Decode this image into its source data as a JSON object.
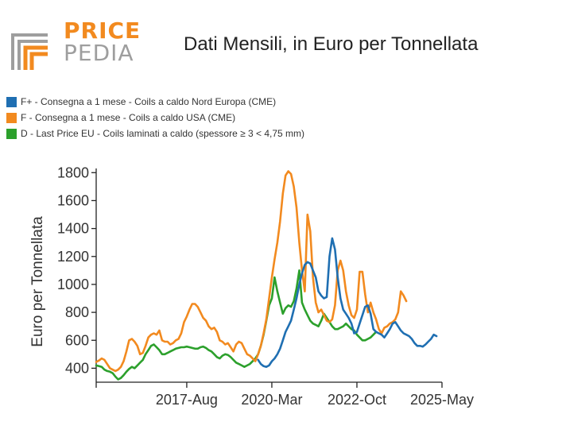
{
  "logo": {
    "line1": "PRICE",
    "line2": "PEDIA"
  },
  "title": "Dati Mensili, in Euro per Tonnellata",
  "colors": {
    "blue": "#1f6fb2",
    "orange": "#f28a1f",
    "green": "#2ca02c",
    "logo_gray": "#9e9e9e",
    "logo_orange": "#f28a1f"
  },
  "chart_data": {
    "type": "line",
    "ylabel": "Euro per Tonnellata",
    "xlabel": "",
    "ylim": [
      300,
      1830
    ],
    "yticks": [
      400,
      600,
      800,
      1000,
      1200,
      1400,
      1600,
      1800
    ],
    "xticks": [
      "2017-Aug",
      "2020-Mar",
      "2022-Oct",
      "2025-May"
    ],
    "x_start": "2014-Nov",
    "x_end": "2025-May",
    "grid": false,
    "legend_position": "top-left",
    "series": [
      {
        "name": "F+ - Consegna a 1 mese - Coils a caldo Nord Europa (CME)",
        "color": "#1f6fb2",
        "start": "2019-Oct",
        "values": [
          460,
          430,
          415,
          410,
          420,
          450,
          470,
          500,
          540,
          600,
          660,
          700,
          740,
          820,
          900,
          1000,
          1080,
          1140,
          1160,
          1150,
          1100,
          1050,
          950,
          920,
          900,
          910,
          1200,
          1330,
          1250,
          1050,
          900,
          820,
          790,
          760,
          720,
          650,
          660,
          720,
          780,
          840,
          850,
          790,
          680,
          660,
          650,
          640,
          620,
          650,
          680,
          720,
          730,
          700,
          670,
          650,
          640,
          630,
          610,
          580,
          560,
          560,
          555,
          570,
          590,
          610,
          640,
          630
        ]
      },
      {
        "name": "F - Consegna a 1 mese - Coils a caldo USA (CME)",
        "color": "#f28a1f",
        "start": "2014-Nov",
        "values": [
          445,
          455,
          470,
          460,
          430,
          400,
          390,
          380,
          390,
          410,
          450,
          520,
          600,
          610,
          590,
          560,
          500,
          510,
          560,
          620,
          640,
          650,
          640,
          670,
          600,
          590,
          590,
          570,
          580,
          600,
          610,
          650,
          730,
          770,
          820,
          860,
          860,
          840,
          800,
          760,
          740,
          700,
          680,
          690,
          660,
          600,
          590,
          570,
          580,
          550,
          520,
          570,
          590,
          580,
          540,
          500,
          490,
          470,
          450,
          500,
          560,
          650,
          750,
          900,
          1050,
          1180,
          1300,
          1450,
          1650,
          1780,
          1810,
          1790,
          1700,
          1550,
          1300,
          1100,
          950,
          1500,
          1380,
          1050,
          870,
          800,
          820,
          780,
          740,
          730,
          750,
          850,
          1100,
          1170,
          1100,
          950,
          850,
          780,
          760,
          820,
          1090,
          1090,
          930,
          800,
          870,
          800,
          750,
          680,
          650,
          690,
          700,
          720,
          730,
          750,
          800,
          950,
          920,
          880
        ]
      },
      {
        "name": "D - Last Price EU - Coils laminati a caldo (spessore ≥ 3 < 4,75 mm)",
        "color": "#2ca02c",
        "start": "2014-Nov",
        "values": [
          420,
          415,
          410,
          390,
          380,
          375,
          365,
          340,
          320,
          330,
          350,
          375,
          395,
          410,
          400,
          420,
          440,
          460,
          500,
          530,
          560,
          570,
          550,
          530,
          500,
          500,
          510,
          520,
          530,
          540,
          545,
          550,
          550,
          555,
          550,
          545,
          540,
          540,
          550,
          555,
          545,
          530,
          520,
          500,
          480,
          470,
          490,
          500,
          495,
          480,
          460,
          440,
          430,
          420,
          410,
          420,
          430,
          450,
          470,
          500,
          560,
          640,
          740,
          850,
          900,
          1050,
          950,
          870,
          790,
          830,
          850,
          840,
          880,
          970,
          1100,
          870,
          820,
          780,
          740,
          720,
          710,
          700,
          740,
          790,
          760,
          730,
          700,
          680,
          680,
          690,
          700,
          720,
          700,
          680,
          670,
          640,
          620,
          600,
          600,
          610,
          620,
          640,
          660
        ]
      }
    ]
  }
}
